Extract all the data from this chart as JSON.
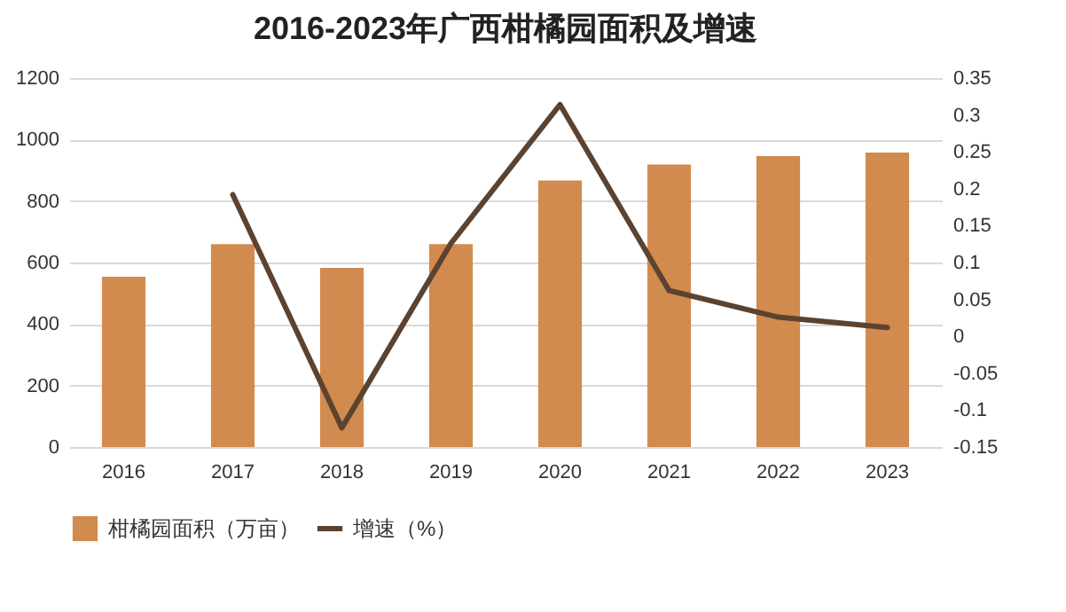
{
  "chart_data": {
    "type": "bar",
    "title": "2016-2023年广西柑橘园面积及增速",
    "categories": [
      "2016",
      "2017",
      "2018",
      "2019",
      "2020",
      "2021",
      "2022",
      "2023"
    ],
    "series": [
      {
        "name": "柑橘园面积（万亩）",
        "color": "#d18b4f",
        "values": [
          554,
          660,
          583,
          660,
          867,
          919,
          946,
          958
        ]
      },
      {
        "name": "增速（%）",
        "type": "line",
        "axis": "y2",
        "color": "#5c4330",
        "values": [
          null,
          0.192,
          -0.124,
          0.126,
          0.314,
          0.062,
          0.026,
          0.012
        ]
      }
    ],
    "ylim": [
      0,
      1200
    ],
    "yticks": [
      0,
      200,
      400,
      600,
      800,
      1000,
      1200
    ],
    "y2lim": [
      -0.15,
      0.35
    ],
    "y2ticks": [
      {
        "value": -0.15,
        "label": "-0.15"
      },
      {
        "value": -0.1,
        "label": "-0.1"
      },
      {
        "value": -0.05,
        "label": "-0.05"
      },
      {
        "value": 0,
        "label": "0"
      },
      {
        "value": 0.05,
        "label": "0.05"
      },
      {
        "value": 0.1,
        "label": "0.1"
      },
      {
        "value": 0.15,
        "label": "0.15"
      },
      {
        "value": 0.2,
        "label": "0.2"
      },
      {
        "value": 0.25,
        "label": "0.25"
      },
      {
        "value": 0.3,
        "label": "0.3"
      },
      {
        "value": 0.35,
        "label": "0.35"
      }
    ],
    "grid": "y",
    "legend": "bottom",
    "marker": "none",
    "line_style": "solid"
  }
}
